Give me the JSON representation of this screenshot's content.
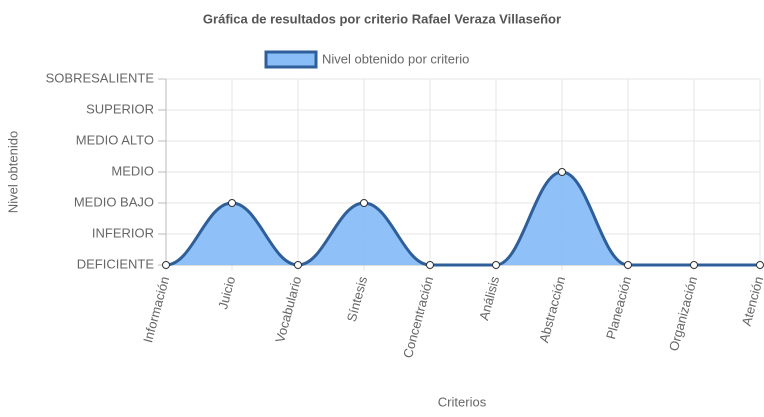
{
  "chart_data": {
    "type": "line",
    "title": "Gráfica de resultados por criterio Rafael Veraza Villaseñor",
    "x_label": "Criterios",
    "y_label": "Nivel obtenido",
    "categories": [
      "Información",
      "Juicio",
      "Vocabulario",
      "Síntesis",
      "Concentración",
      "Análisis",
      "Abstracción",
      "Planeación",
      "Organización",
      "Atención"
    ],
    "series": [
      {
        "name": "Nivel obtenido por criterio",
        "color": "#2f5f9a",
        "fill": "#89bdf7",
        "values": [
          0,
          2,
          0,
          2,
          0,
          0,
          3,
          0,
          0,
          0
        ]
      }
    ],
    "ylim": [
      0,
      6
    ],
    "yticks": [
      {
        "value": 0,
        "label": "DEFICIENTE"
      },
      {
        "value": 1,
        "label": "INFERIOR"
      },
      {
        "value": 2,
        "label": "MEDIO BAJO"
      },
      {
        "value": 3,
        "label": "MEDIO"
      },
      {
        "value": 4,
        "label": "MEDIO ALTO"
      },
      {
        "value": 5,
        "label": "SUPERIOR"
      },
      {
        "value": 6,
        "label": "SOBRESALIENTE"
      }
    ],
    "grid": true,
    "legend": "top"
  }
}
